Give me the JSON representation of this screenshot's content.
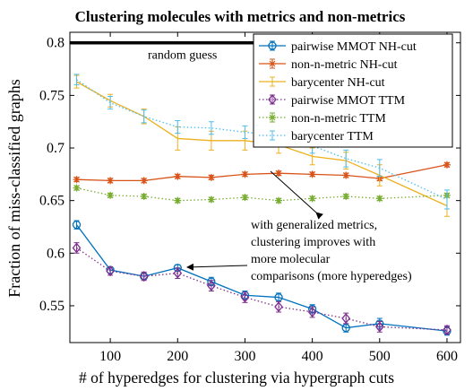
{
  "chart_data": {
    "type": "line",
    "title": "Clustering molecules with metrics and non-metrics",
    "xlabel": "# of hyperedges for clustering via hypergraph cuts",
    "ylabel": "Fraction of miss-classified graphs",
    "xlim": [
      40,
      620
    ],
    "ylim": [
      0.515,
      0.81
    ],
    "xticks": [
      100,
      200,
      300,
      400,
      500,
      600
    ],
    "yticks": [
      0.55,
      0.6,
      0.65,
      0.7,
      0.75,
      0.8
    ],
    "ytick_labels": [
      "0.55",
      "0.6",
      "0.65",
      "0.7",
      "0.75",
      "0.8"
    ],
    "grid": false,
    "legend_position": "top-right",
    "x": [
      50,
      100,
      150,
      200,
      250,
      300,
      350,
      400,
      450,
      500,
      600
    ],
    "reference_line": {
      "y": 0.8,
      "label": "random guess"
    },
    "series": [
      {
        "name": "pairwise MMOT NH-cut",
        "color": "#0072BD",
        "style": "solid",
        "marker": "circle",
        "values": [
          0.627,
          0.584,
          0.578,
          0.586,
          0.573,
          0.56,
          0.558,
          0.547,
          0.529,
          0.533,
          0.526
        ],
        "errors": [
          0.004,
          0.003,
          0.003,
          0.003,
          0.004,
          0.004,
          0.004,
          0.004,
          0.004,
          0.005,
          0.004
        ]
      },
      {
        "name": "non-n-metric NH-cut",
        "color": "#D95319",
        "style": "solid",
        "marker": "star",
        "values": [
          0.67,
          0.669,
          0.669,
          0.673,
          0.672,
          0.675,
          0.676,
          0.675,
          0.674,
          0.671,
          0.684
        ],
        "errors": [
          0.002,
          0.002,
          0.002,
          0.002,
          0.002,
          0.002,
          0.002,
          0.002,
          0.002,
          0.002,
          0.002
        ]
      },
      {
        "name": "barycenter  NH-cut",
        "color": "#EDB120",
        "style": "solid",
        "marker": "none",
        "values": [
          0.763,
          0.745,
          0.73,
          0.709,
          0.707,
          0.707,
          0.703,
          0.692,
          0.688,
          0.674,
          0.645
        ],
        "errors": [
          0.006,
          0.006,
          0.007,
          0.011,
          0.009,
          0.009,
          0.008,
          0.008,
          0.008,
          0.01,
          0.01
        ]
      },
      {
        "name": "pairwise MMOT TTM",
        "color": "#7E2F8E",
        "style": "dotted",
        "marker": "diamond",
        "values": [
          0.605,
          0.583,
          0.578,
          0.581,
          0.569,
          0.558,
          0.549,
          0.544,
          0.538,
          0.53,
          0.527
        ],
        "errors": [
          0.005,
          0.004,
          0.004,
          0.005,
          0.005,
          0.005,
          0.005,
          0.005,
          0.005,
          0.005,
          0.004
        ]
      },
      {
        "name": "non-n-metric TTM",
        "color": "#77AC30",
        "style": "dotted",
        "marker": "star",
        "values": [
          0.662,
          0.655,
          0.654,
          0.65,
          0.651,
          0.653,
          0.65,
          0.652,
          0.654,
          0.652,
          0.655
        ],
        "errors": [
          0.002,
          0.002,
          0.002,
          0.002,
          0.002,
          0.002,
          0.002,
          0.002,
          0.002,
          0.002,
          0.002
        ]
      },
      {
        "name": "barycenter  TTM",
        "color": "#4DBEEE",
        "style": "dotted",
        "marker": "none",
        "values": [
          0.765,
          0.743,
          0.73,
          0.72,
          0.719,
          0.715,
          0.712,
          0.702,
          0.69,
          0.681,
          0.651
        ],
        "errors": [
          0.005,
          0.006,
          0.006,
          0.006,
          0.006,
          0.006,
          0.007,
          0.007,
          0.008,
          0.008,
          0.009
        ]
      }
    ],
    "annotations": [
      {
        "lines": [
          "with generalized metrics,",
          "clustering improves with",
          "more molecular",
          "comparisons (more hyperedges)"
        ]
      }
    ]
  }
}
